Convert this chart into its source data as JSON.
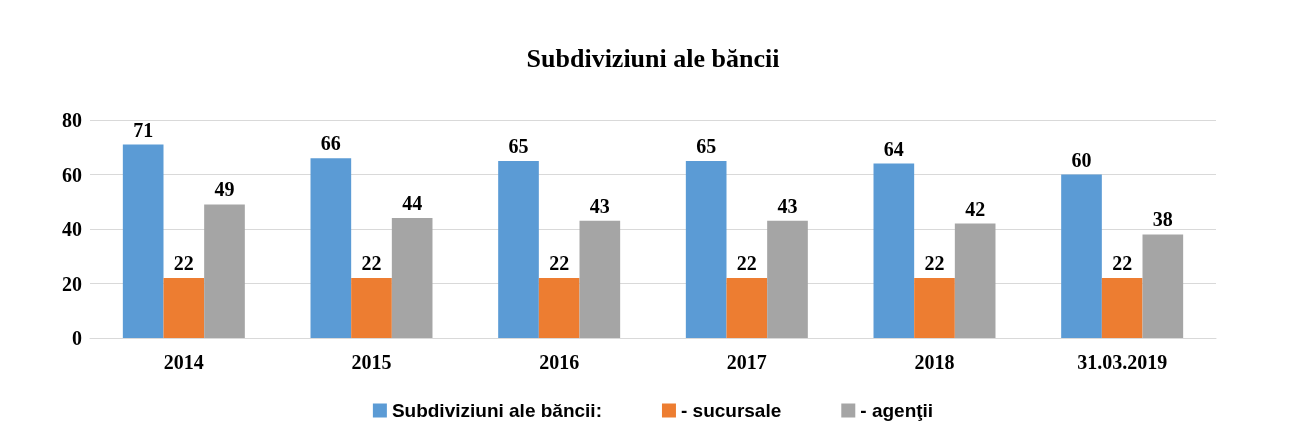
{
  "chart_data": {
    "type": "bar",
    "title": "Subdiviziuni ale băncii",
    "categories": [
      "2014",
      "2015",
      "2016",
      "2017",
      "2018",
      "31.03.2019"
    ],
    "series": [
      {
        "name": "Subdiviziuni ale băncii:",
        "color": "#5b9bd5",
        "values": [
          71,
          66,
          65,
          65,
          64,
          60
        ]
      },
      {
        "name": "- sucursale",
        "color": "#ed7d31",
        "values": [
          22,
          22,
          22,
          22,
          22,
          22
        ]
      },
      {
        "name": "- agenţii",
        "color": "#a5a5a5",
        "values": [
          49,
          44,
          43,
          43,
          42,
          38
        ]
      }
    ],
    "ylim": [
      0,
      80
    ],
    "yticks": [
      0,
      20,
      40,
      60,
      80
    ],
    "grid": "y",
    "legend": "bottom",
    "data_labels": true
  }
}
